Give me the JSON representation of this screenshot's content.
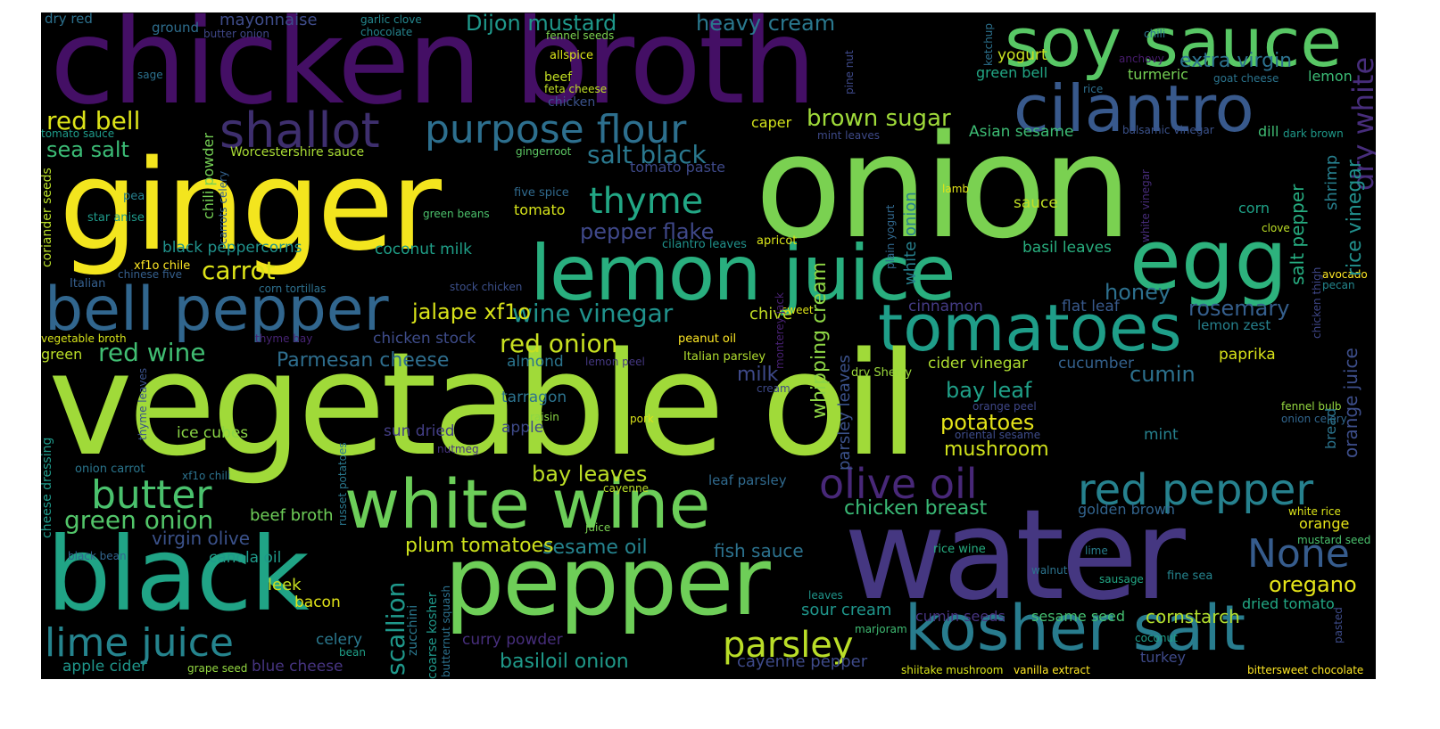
{
  "wordcloud": {
    "words": [
      {
        "text": "chicken broth",
        "color": "#440f65"
      },
      {
        "text": "soy sauce",
        "color": "#58c765"
      },
      {
        "text": "ginger",
        "color": "#f3e51e"
      },
      {
        "text": "onion",
        "color": "#7ad151"
      },
      {
        "text": "cilantro",
        "color": "#38598c"
      },
      {
        "text": "shallot",
        "color": "#3e2f6e"
      },
      {
        "text": "purpose flour",
        "color": "#2d6f8e"
      },
      {
        "text": "lemon juice",
        "color": "#29af7f"
      },
      {
        "text": "egg",
        "color": "#2db27d"
      },
      {
        "text": "bell pepper",
        "color": "#31668e"
      },
      {
        "text": "tomatoes",
        "color": "#1f9e89"
      },
      {
        "text": "vegetable oil",
        "color": "#a0da39"
      },
      {
        "text": "white wine",
        "color": "#6cce59"
      },
      {
        "text": "black",
        "color": "#20a486"
      },
      {
        "text": "pepper",
        "color": "#6ece58"
      },
      {
        "text": "water",
        "color": "#453781"
      },
      {
        "text": "kosher salt",
        "color": "#287c8e"
      },
      {
        "text": "red pepper",
        "color": "#26818e"
      },
      {
        "text": "olive oil",
        "color": "#482878"
      },
      {
        "text": "lime juice",
        "color": "#25848e"
      },
      {
        "text": "butter",
        "color": "#4ac16d"
      },
      {
        "text": "parsley",
        "color": "#bade28"
      },
      {
        "text": "None",
        "color": "#365c8d"
      },
      {
        "text": "dry white",
        "color": "#472d7b"
      },
      {
        "text": "thyme",
        "color": "#22a785"
      },
      {
        "text": "red bell",
        "color": "#dce319"
      },
      {
        "text": "sea salt",
        "color": "#3bbb75"
      },
      {
        "text": "carrot",
        "color": "#dde318"
      },
      {
        "text": "green onion",
        "color": "#52c569"
      },
      {
        "text": "salt black",
        "color": "#2a788e"
      },
      {
        "text": "pepper flake",
        "color": "#3f4889"
      },
      {
        "text": "wine vinegar",
        "color": "#20928c"
      },
      {
        "text": "red onion",
        "color": "#c8e020"
      },
      {
        "text": "red wine",
        "color": "#40bd72"
      },
      {
        "text": "Parmesan cheese",
        "color": "#2e6e8e"
      },
      {
        "text": "brown sugar",
        "color": "#9fda3a"
      },
      {
        "text": "heavy cream",
        "color": "#2a788e"
      },
      {
        "text": "Dijon mustard",
        "color": "#1f988b"
      },
      {
        "text": "extra virgin",
        "color": "#2c718e"
      },
      {
        "text": "mayonnaise",
        "color": "#3e4c8a"
      },
      {
        "text": "rosemary",
        "color": "#355f8d"
      },
      {
        "text": "honey",
        "color": "#2d708e"
      },
      {
        "text": "rice vinegar",
        "color": "#21908d"
      },
      {
        "text": "salt pepper",
        "color": "#26ad81"
      },
      {
        "text": "orange juice",
        "color": "#3d4e8a"
      },
      {
        "text": "basil leaves",
        "color": "#29af7f"
      },
      {
        "text": "bay leaf",
        "color": "#1fa088"
      },
      {
        "text": "potatoes",
        "color": "#e5e419"
      },
      {
        "text": "mushroom",
        "color": "#d0e11c"
      },
      {
        "text": "chicken breast",
        "color": "#3aba76"
      },
      {
        "text": "cumin",
        "color": "#2c718e"
      },
      {
        "text": "oregano",
        "color": "#e5e419"
      },
      {
        "text": "cornstarch",
        "color": "#b2dd2d"
      },
      {
        "text": "sesame oil",
        "color": "#25838e"
      },
      {
        "text": "fish sauce",
        "color": "#2c728e"
      },
      {
        "text": "plum tomatoes",
        "color": "#cde11d"
      },
      {
        "text": "basiloil onion",
        "color": "#1f9a8a"
      },
      {
        "text": "cayenne pepper",
        "color": "#3e4a89"
      },
      {
        "text": "sour cream",
        "color": "#1f958b"
      },
      {
        "text": "virgin olive",
        "color": "#3b528b"
      },
      {
        "text": "beef broth",
        "color": "#6ece58"
      },
      {
        "text": "canola oil",
        "color": "#1f9a8a"
      },
      {
        "text": "leek",
        "color": "#c8e020"
      },
      {
        "text": "bacon",
        "color": "#e2e418"
      },
      {
        "text": "celery",
        "color": "#2a788e"
      },
      {
        "text": "apple cider",
        "color": "#1f968b"
      },
      {
        "text": "blue cheese",
        "color": "#463480"
      },
      {
        "text": "curry powder",
        "color": "#472e7c"
      },
      {
        "text": "scallion",
        "color": "#1f988b"
      },
      {
        "text": "whipping cream",
        "color": "#8ed645"
      },
      {
        "text": "parsley leaves",
        "color": "#3b528b"
      },
      {
        "text": "white onion",
        "color": "#27808e"
      },
      {
        "text": "jalape xf1o",
        "color": "#d8e219"
      },
      {
        "text": "coconut milk",
        "color": "#1f9f88"
      },
      {
        "text": "black peppercorns",
        "color": "#20928c"
      },
      {
        "text": "Worcestershire sauce",
        "color": "#a8db34"
      },
      {
        "text": "chili powder",
        "color": "#75d054"
      },
      {
        "text": "coriander seeds",
        "color": "#b8de29"
      },
      {
        "text": "tomato",
        "color": "#d5e21a"
      },
      {
        "text": "chive",
        "color": "#c2df23"
      },
      {
        "text": "milk",
        "color": "#3e4989"
      },
      {
        "text": "almond",
        "color": "#2b758e"
      },
      {
        "text": "tarragon",
        "color": "#2c738e"
      },
      {
        "text": "apple",
        "color": "#3e4a89"
      },
      {
        "text": "sun dried",
        "color": "#433e85"
      },
      {
        "text": "ice cubes",
        "color": "#8bd646"
      },
      {
        "text": "bay leaves",
        "color": "#bddf26"
      },
      {
        "text": "chicken stock",
        "color": "#3e4c8a"
      },
      {
        "text": "cider vinegar",
        "color": "#addc30"
      },
      {
        "text": "cucumber",
        "color": "#34618d"
      },
      {
        "text": "paprika",
        "color": "#d8e219"
      },
      {
        "text": "mint",
        "color": "#26818e"
      },
      {
        "text": "shrimp",
        "color": "#277f8e"
      },
      {
        "text": "bread",
        "color": "#2b748e"
      },
      {
        "text": "green bell",
        "color": "#22a785"
      },
      {
        "text": "turmeric",
        "color": "#75d054"
      },
      {
        "text": "lemon",
        "color": "#3bbb75"
      },
      {
        "text": "lemon zest",
        "color": "#26818e"
      },
      {
        "text": "cinnamon",
        "color": "#443b84"
      },
      {
        "text": "flat leaf",
        "color": "#38598c"
      },
      {
        "text": "yogurt",
        "color": "#c8e020"
      },
      {
        "text": "Asian sesame",
        "color": "#3dbc74"
      },
      {
        "text": "dill",
        "color": "#3fbc73"
      },
      {
        "text": "corn",
        "color": "#1fa287"
      },
      {
        "text": "sauce",
        "color": "#c0df25"
      },
      {
        "text": "caper",
        "color": "#d2e21b"
      },
      {
        "text": "tomato paste",
        "color": "#3e4989"
      },
      {
        "text": "green",
        "color": "#bade28"
      },
      {
        "text": "golden brown",
        "color": "#32648e"
      },
      {
        "text": "orange",
        "color": "#e5e419"
      },
      {
        "text": "dried tomato",
        "color": "#22a884"
      },
      {
        "text": "sesame seed",
        "color": "#44bf70"
      },
      {
        "text": "cumin seeds",
        "color": "#463480"
      },
      {
        "text": "turkey",
        "color": "#3e4a89"
      },
      {
        "text": "ground",
        "color": "#2e6e8e"
      },
      {
        "text": "dry red",
        "color": "#2c718e"
      },
      {
        "text": "garlic clove",
        "color": "#24878e"
      },
      {
        "text": "chocolate",
        "color": "#25848e"
      },
      {
        "text": "butter onion",
        "color": "#3f4788"
      },
      {
        "text": "fennel seeds",
        "color": "#7cd250"
      },
      {
        "text": "allspice",
        "color": "#d8e219"
      },
      {
        "text": "beef",
        "color": "#c2df23"
      },
      {
        "text": "feta cheese",
        "color": "#c0df25"
      },
      {
        "text": "chicken",
        "color": "#3b528b"
      },
      {
        "text": "sage",
        "color": "#2c718e"
      },
      {
        "text": "tomato sauce",
        "color": "#1e9b8a"
      },
      {
        "text": "pea",
        "color": "#27808e"
      },
      {
        "text": "star anise",
        "color": "#1f9a8a"
      },
      {
        "text": "gingerroot",
        "color": "#5cc863"
      },
      {
        "text": "five spice",
        "color": "#306a8e"
      },
      {
        "text": "green beans",
        "color": "#4cc26c"
      },
      {
        "text": "cilantro leaves",
        "color": "#20928c"
      },
      {
        "text": "apricot",
        "color": "#d8e219"
      },
      {
        "text": "xf1o chile",
        "color": "#fde725"
      },
      {
        "text": "chinese five",
        "color": "#355f8d"
      },
      {
        "text": "Italian",
        "color": "#355f8d"
      },
      {
        "text": "corn tortillas",
        "color": "#2d708e"
      },
      {
        "text": "stock chicken",
        "color": "#3c508b"
      },
      {
        "text": "vegetable broth",
        "color": "#d5e21a"
      },
      {
        "text": "thyme bay",
        "color": "#482475"
      },
      {
        "text": "peanut oil",
        "color": "#fde725"
      },
      {
        "text": "lemon peel",
        "color": "#453882"
      },
      {
        "text": "Italian parsley",
        "color": "#b0dd2f"
      },
      {
        "text": "cream",
        "color": "#3e4989"
      },
      {
        "text": "orange peel",
        "color": "#3f4788"
      },
      {
        "text": "raisin",
        "color": "#8bd646"
      },
      {
        "text": "pork",
        "color": "#dae319"
      },
      {
        "text": "dry Sherry",
        "color": "#9bd93c"
      },
      {
        "text": "oriental sesame",
        "color": "#3e4c8a"
      },
      {
        "text": "fennel bulb",
        "color": "#95d840"
      },
      {
        "text": "onion celery",
        "color": "#31668e"
      },
      {
        "text": "nutmeg",
        "color": "#463480"
      },
      {
        "text": "onion carrot",
        "color": "#2a768e"
      },
      {
        "text": "xf1o chili",
        "color": "#2c728e"
      },
      {
        "text": "cayenne",
        "color": "#bade28"
      },
      {
        "text": "juice",
        "color": "#7ad151"
      },
      {
        "text": "leaf parsley",
        "color": "#306a8e"
      },
      {
        "text": "black bean",
        "color": "#32658e"
      },
      {
        "text": "rice wine",
        "color": "#26ad81"
      },
      {
        "text": "walnut",
        "color": "#2c738e"
      },
      {
        "text": "sausage",
        "color": "#22a785"
      },
      {
        "text": "fine sea",
        "color": "#25848e"
      },
      {
        "text": "lime",
        "color": "#287d8e"
      },
      {
        "text": "leaves",
        "color": "#1f958b"
      },
      {
        "text": "marjoram",
        "color": "#3fbc73"
      },
      {
        "text": "coconut",
        "color": "#1f9e89"
      },
      {
        "text": "grape seed",
        "color": "#93d741"
      },
      {
        "text": "bean",
        "color": "#1f9f88"
      },
      {
        "text": "shiitake mushroom",
        "color": "#d5e21a"
      },
      {
        "text": "vanilla extract",
        "color": "#fde725"
      },
      {
        "text": "bittersweet chocolate",
        "color": "#fde725"
      },
      {
        "text": "mustard seed",
        "color": "#4ac16d"
      },
      {
        "text": "white rice",
        "color": "#dae319"
      },
      {
        "text": "chile",
        "color": "#2fb47c"
      },
      {
        "text": "pecan",
        "color": "#24878e"
      },
      {
        "text": "avocado",
        "color": "#fde725"
      },
      {
        "text": "clove",
        "color": "#bddf26"
      },
      {
        "text": "chili",
        "color": "#2b758e"
      },
      {
        "text": "anchovy",
        "color": "#481c6e"
      },
      {
        "text": "goat cheese",
        "color": "#2b748e"
      },
      {
        "text": "rice",
        "color": "#2e6f8e"
      },
      {
        "text": "balsamic vinegar",
        "color": "#3b528b"
      },
      {
        "text": "dark brown",
        "color": "#1f9a8a"
      },
      {
        "text": "mint leaves",
        "color": "#3e4a89"
      },
      {
        "text": "lamb",
        "color": "#e2e418"
      },
      {
        "text": "ketchup",
        "color": "#2c718e"
      },
      {
        "text": "pine nut",
        "color": "#3e4989"
      },
      {
        "text": "plain yogurt",
        "color": "#31688e"
      },
      {
        "text": "sweet",
        "color": "#dde318"
      },
      {
        "text": "monterey jack",
        "color": "#482173"
      },
      {
        "text": "chicken thigh",
        "color": "#3f4788"
      },
      {
        "text": "white vinegar",
        "color": "#472c7a"
      },
      {
        "text": "carrots celery",
        "color": "#34618d"
      },
      {
        "text": "thyme leaves",
        "color": "#3b528b"
      },
      {
        "text": "cheese dressing",
        "color": "#1f9a8a"
      },
      {
        "text": "russet potatoes",
        "color": "#2a788e"
      },
      {
        "text": "coarse kosher",
        "color": "#1f988b"
      },
      {
        "text": "zucchini",
        "color": "#2a788e"
      },
      {
        "text": "butternut squash",
        "color": "#2c718e"
      },
      {
        "text": "pasted",
        "color": "#3e4c8a"
      }
    ]
  }
}
